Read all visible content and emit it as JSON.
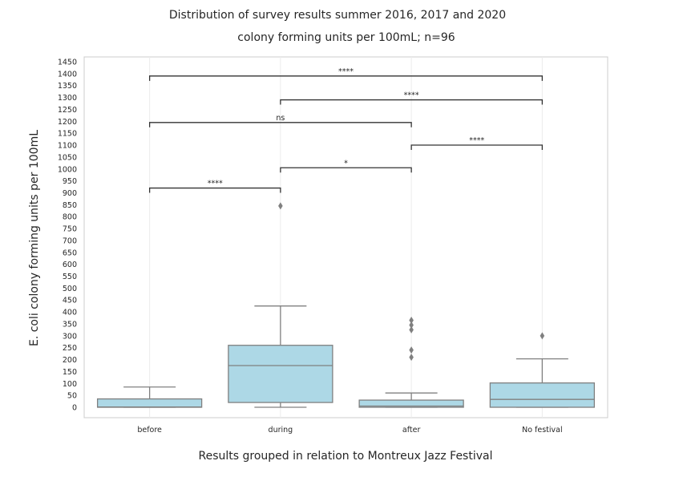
{
  "chart_data": {
    "type": "box",
    "title": "Distribution of survey results summer 2016, 2017 and 2020",
    "subtitle": "colony forming units per 100mL; n=96",
    "xlabel": "Results grouped in relation to Montreux Jazz Festival",
    "ylabel": "E. coli colony forming units per 100mL",
    "ylim": [
      -40,
      1480
    ],
    "yticks": [
      0,
      50,
      100,
      150,
      200,
      250,
      300,
      350,
      400,
      450,
      500,
      550,
      600,
      650,
      700,
      750,
      800,
      850,
      900,
      950,
      1000,
      1050,
      1100,
      1150,
      1200,
      1250,
      1300,
      1350,
      1400,
      1450
    ],
    "grid": "vertical only",
    "box_color": "#add8e6",
    "line_color": "#808080",
    "categories": [
      "before",
      "during",
      "after",
      "No festival"
    ],
    "boxes": [
      {
        "category": "before",
        "whisker_low": 0,
        "q1": 0,
        "median": 1,
        "q3": 35,
        "whisker_high": 85,
        "outliers": []
      },
      {
        "category": "during",
        "whisker_low": 0,
        "q1": 20,
        "median": 175,
        "q3": 260,
        "whisker_high": 425,
        "outliers": [
          845
        ]
      },
      {
        "category": "after",
        "whisker_low": 0,
        "q1": 0,
        "median": 5,
        "q3": 30,
        "whisker_high": 60,
        "outliers": [
          210,
          240,
          325,
          345,
          365
        ]
      },
      {
        "category": "No festival",
        "whisker_low": 0,
        "q1": 0,
        "median": 33,
        "q3": 102,
        "whisker_high": 203,
        "outliers": [
          300
        ]
      }
    ],
    "annotations": [
      {
        "from": "before",
        "to": "during",
        "y": 920,
        "label": "****"
      },
      {
        "from": "during",
        "to": "after",
        "y": 1005,
        "label": "*"
      },
      {
        "from": "after",
        "to": "No festival",
        "y": 1100,
        "label": "****"
      },
      {
        "from": "before",
        "to": "after",
        "y": 1195,
        "label": "ns"
      },
      {
        "from": "during",
        "to": "No festival",
        "y": 1290,
        "label": "****"
      },
      {
        "from": "before",
        "to": "No festival",
        "y": 1390,
        "label": "****"
      }
    ]
  }
}
